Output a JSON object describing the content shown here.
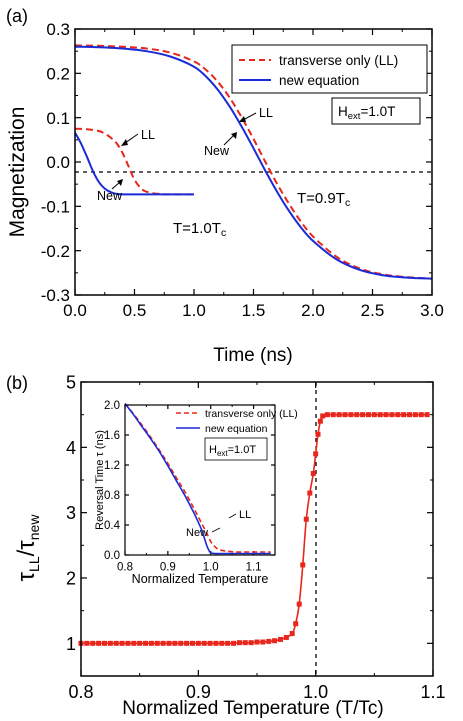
{
  "panel_a": {
    "label": "(a)",
    "ylabel": "Magnetization",
    "xlabel": "Time (ns)",
    "field_label": "H",
    "field_sub": "ext",
    "field_value": "=1.0T",
    "legend": [
      "transverse only (LL)",
      "new equation"
    ],
    "ann_ll_upper": "LL",
    "ann_new_upper": "New",
    "ann_ll_lower": "LL",
    "ann_new_lower": "New",
    "temp_lower": "T=1.0T",
    "temp_lower_sub": "c",
    "temp_upper": "T=0.9T",
    "temp_upper_sub": "c"
  },
  "panel_b": {
    "label": "(b)",
    "ylabel_num": "τ",
    "ylabel_num_sub": "LL",
    "ylabel_den": "τ",
    "ylabel_den_sub": "new",
    "xlabel": "Normalized Temperature (T/Tc)",
    "inset": {
      "ylabel": "Reversal Time  τ (ns)",
      "xlabel": "Normalized Temperature",
      "legend": [
        "transverse only (LL)",
        "new equation"
      ],
      "field_label": "H",
      "field_sub": "ext",
      "field_value": "=1.0T",
      "ann_ll": "LL",
      "ann_new": "New"
    }
  },
  "chart_data": [
    {
      "type": "line",
      "xlabel": "Time (ns)",
      "ylabel": "Magnetization",
      "xlim": [
        0.0,
        3.0
      ],
      "ylim": [
        -0.3,
        0.3
      ],
      "xticks": [
        "0.0",
        "0.5",
        "1.0",
        "1.5",
        "2.0",
        "2.5",
        "3.0"
      ],
      "yticks": [
        "0.3",
        "0.2",
        "0.1",
        "0.0",
        "-0.1",
        "-0.2",
        "-0.3"
      ],
      "legend_position": "top-right",
      "series": [
        {
          "name": "transverse only (LL)",
          "condition": "T=0.9Tc",
          "color": "#e8261c",
          "dash": true,
          "x": [
            0,
            0.2,
            0.4,
            0.6,
            0.8,
            1.0,
            1.1,
            1.2,
            1.3,
            1.4,
            1.5,
            1.6,
            1.7,
            1.8,
            1.9,
            2.0,
            2.2,
            2.4,
            2.6,
            2.8,
            3.0
          ],
          "y": [
            0.263,
            0.262,
            0.26,
            0.256,
            0.247,
            0.227,
            0.208,
            0.181,
            0.145,
            0.101,
            0.052,
            0.0,
            -0.05,
            -0.095,
            -0.135,
            -0.168,
            -0.214,
            -0.241,
            -0.254,
            -0.26,
            -0.263
          ]
        },
        {
          "name": "new equation",
          "condition": "T=0.9Tc",
          "color": "#1a2ad6",
          "dash": false,
          "x": [
            0,
            0.2,
            0.4,
            0.6,
            0.8,
            1.0,
            1.1,
            1.2,
            1.3,
            1.4,
            1.5,
            1.6,
            1.7,
            1.8,
            1.9,
            2.0,
            2.2,
            2.4,
            2.6,
            2.8,
            3.0
          ],
          "y": [
            0.26,
            0.259,
            0.256,
            0.25,
            0.238,
            0.215,
            0.193,
            0.163,
            0.125,
            0.08,
            0.031,
            -0.02,
            -0.068,
            -0.111,
            -0.148,
            -0.178,
            -0.22,
            -0.244,
            -0.256,
            -0.261,
            -0.263
          ]
        },
        {
          "name": "transverse only (LL)",
          "condition": "T=1.0Tc",
          "color": "#e8261c",
          "dash": true,
          "x": [
            0,
            0.1,
            0.2,
            0.25,
            0.3,
            0.35,
            0.4,
            0.45,
            0.5,
            0.55,
            0.6,
            0.7,
            0.8,
            1.0
          ],
          "y": [
            0.075,
            0.074,
            0.07,
            0.064,
            0.055,
            0.042,
            0.02,
            -0.01,
            -0.04,
            -0.058,
            -0.067,
            -0.072,
            -0.073,
            -0.073
          ]
        },
        {
          "name": "new equation",
          "condition": "T=1.0Tc",
          "color": "#1a2ad6",
          "dash": false,
          "x": [
            0,
            0.05,
            0.1,
            0.15,
            0.2,
            0.25,
            0.3,
            0.35,
            0.4,
            0.5,
            0.6,
            0.8,
            1.0
          ],
          "y": [
            0.066,
            0.042,
            0.012,
            -0.02,
            -0.045,
            -0.06,
            -0.068,
            -0.072,
            -0.073,
            -0.073,
            -0.073,
            -0.073,
            -0.073
          ]
        }
      ]
    },
    {
      "type": "line",
      "xlabel": "Normalized Temperature (T/Tc)",
      "ylabel": "τLL/τnew",
      "xlim": [
        0.8,
        1.1
      ],
      "ylim": [
        0.5,
        5.0
      ],
      "xticks": [
        "0.8",
        "0.9",
        "1.0",
        "1.1"
      ],
      "yticks": [
        "1",
        "2",
        "3",
        "4",
        "5"
      ],
      "vline_x": 1.0,
      "series": [
        {
          "name": "",
          "color": "#e8261c",
          "markers": "square",
          "x": [
            0.8,
            0.805,
            0.81,
            0.815,
            0.82,
            0.825,
            0.83,
            0.835,
            0.84,
            0.845,
            0.85,
            0.855,
            0.86,
            0.865,
            0.87,
            0.875,
            0.88,
            0.885,
            0.89,
            0.895,
            0.9,
            0.905,
            0.91,
            0.915,
            0.92,
            0.925,
            0.93,
            0.935,
            0.94,
            0.945,
            0.95,
            0.955,
            0.96,
            0.965,
            0.97,
            0.975,
            0.98,
            0.983,
            0.986,
            0.989,
            0.992,
            0.995,
            0.998,
            1.0,
            1.002,
            1.004,
            1.006,
            1.01,
            1.015,
            1.02,
            1.025,
            1.03,
            1.035,
            1.04,
            1.045,
            1.05,
            1.055,
            1.06,
            1.065,
            1.07,
            1.075,
            1.08,
            1.085,
            1.09,
            1.095
          ],
          "y": [
            1.0,
            1.0,
            1.0,
            1.0,
            1.0,
            1.0,
            1.0,
            1.0,
            1.0,
            1.0,
            1.0,
            1.0,
            1.0,
            1.0,
            1.0,
            1.0,
            1.0,
            1.0,
            1.0,
            1.0,
            1.0,
            1.0,
            1.0,
            1.0,
            1.0,
            1.0,
            1.0,
            1.01,
            1.01,
            1.01,
            1.02,
            1.02,
            1.03,
            1.04,
            1.06,
            1.09,
            1.15,
            1.3,
            1.6,
            2.2,
            2.9,
            3.3,
            3.6,
            3.9,
            4.2,
            4.4,
            4.48,
            4.5,
            4.5,
            4.5,
            4.5,
            4.5,
            4.5,
            4.5,
            4.5,
            4.5,
            4.5,
            4.5,
            4.5,
            4.5,
            4.5,
            4.5,
            4.5,
            4.5,
            4.5
          ]
        }
      ]
    },
    {
      "type": "line",
      "inset": true,
      "xlabel": "Normalized Temperature",
      "ylabel": "Reversal Time  τ (ns)",
      "xlim": [
        0.8,
        1.15
      ],
      "ylim": [
        0.0,
        2.0
      ],
      "xticks": [
        "0.8",
        "0.9",
        "1.0",
        "1.1"
      ],
      "yticks": [
        "0.0",
        "0.4",
        "0.8",
        "1.2",
        "1.6",
        "2.0"
      ],
      "series": [
        {
          "name": "transverse only (LL)",
          "color": "#e8261c",
          "dash": true,
          "x": [
            0.8,
            0.82,
            0.84,
            0.86,
            0.88,
            0.9,
            0.92,
            0.94,
            0.96,
            0.97,
            0.98,
            0.99,
            1.0,
            1.01,
            1.02,
            1.04,
            1.06,
            1.08,
            1.1,
            1.12,
            1.14
          ],
          "y": [
            2.02,
            1.88,
            1.73,
            1.57,
            1.4,
            1.22,
            1.03,
            0.84,
            0.63,
            0.52,
            0.41,
            0.3,
            0.18,
            0.11,
            0.07,
            0.05,
            0.04,
            0.04,
            0.04,
            0.04,
            0.04
          ]
        },
        {
          "name": "new equation",
          "color": "#1a2ad6",
          "dash": false,
          "x": [
            0.8,
            0.82,
            0.84,
            0.86,
            0.88,
            0.9,
            0.92,
            0.94,
            0.96,
            0.97,
            0.98,
            0.985,
            0.99,
            0.995,
            1.0,
            1.01,
            1.02,
            1.04,
            1.06,
            1.08,
            1.1,
            1.12,
            1.14
          ],
          "y": [
            2.02,
            1.87,
            1.71,
            1.55,
            1.38,
            1.19,
            0.99,
            0.79,
            0.57,
            0.45,
            0.32,
            0.23,
            0.14,
            0.07,
            0.03,
            0.02,
            0.02,
            0.02,
            0.02,
            0.02,
            0.02,
            0.02,
            0.02
          ]
        }
      ]
    }
  ]
}
